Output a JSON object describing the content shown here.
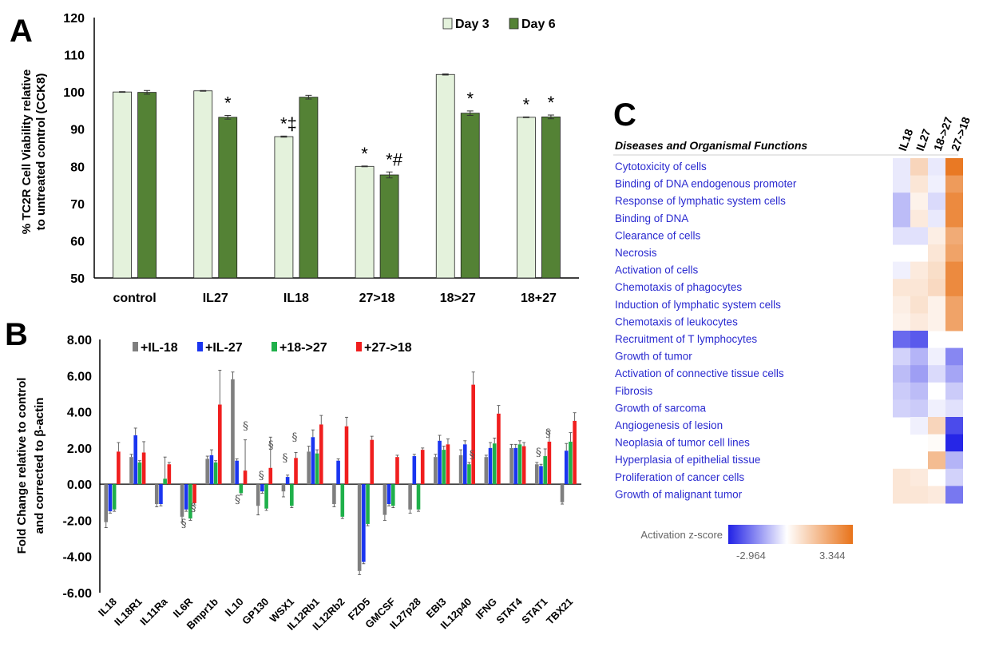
{
  "chart_data": [
    {
      "panel": "A",
      "type": "bar",
      "ylabel": "% TC2R Cell Viability relative to untreated control (CCK8)",
      "ylim": [
        50,
        120
      ],
      "yticks": [
        50,
        60,
        70,
        80,
        90,
        100,
        110,
        120
      ],
      "categories": [
        "control",
        "IL27",
        "IL18",
        "27>18",
        "18>27",
        "18+27"
      ],
      "series": [
        {
          "name": "Day 3",
          "color": "#e4f2dc",
          "values": [
            100.0,
            100.3,
            88.0,
            80.0,
            104.7,
            93.2
          ],
          "errors": [
            0.1,
            0.1,
            0.15,
            0.1,
            0.15,
            0.1
          ]
        },
        {
          "name": "Day 6",
          "color": "#548235",
          "values": [
            99.9,
            93.2,
            98.6,
            77.7,
            94.3,
            93.3
          ],
          "errors": [
            0.5,
            0.5,
            0.5,
            0.8,
            0.6,
            0.5
          ]
        }
      ],
      "annotations": [
        {
          "category": "IL27",
          "series": "Day 6",
          "text": "*"
        },
        {
          "category": "IL18",
          "series": "Day 3",
          "text": "*‡"
        },
        {
          "category": "27>18",
          "series": "Day 3",
          "text": "*"
        },
        {
          "category": "27>18",
          "series": "Day 6",
          "text": "*#"
        },
        {
          "category": "18>27",
          "series": "Day 6",
          "text": "*"
        },
        {
          "category": "18+27",
          "series": "Day 3",
          "text": "*"
        },
        {
          "category": "18+27",
          "series": "Day 6",
          "text": "*"
        }
      ],
      "legend": "top-right",
      "grid": false
    },
    {
      "panel": "B",
      "type": "bar",
      "ylabel_line1": "Fold Change relative to control",
      "ylabel_line2": "and corrected to β-actin",
      "ylim": [
        -6,
        8
      ],
      "yticks": [
        "8.00",
        "6.00",
        "4.00",
        "2.00",
        "0.00",
        "-2.00",
        "-4.00",
        "-6.00"
      ],
      "categories": [
        "IL18",
        "IL18R1",
        "IL11Ra",
        "IL6R",
        "Bmpr1b",
        "IL10",
        "GP130",
        "WSX1",
        "IL12Rb1",
        "IL12Rb2",
        "FZD5",
        "GMCSF",
        "IL27p28",
        "EBI3",
        "IL12p40",
        "IFNG",
        "STAT4",
        "STAT1",
        "TBX21"
      ],
      "series": [
        {
          "name": "+IL-18",
          "color": "#7f7f7f",
          "values": [
            -2.1,
            1.5,
            -1.1,
            -1.8,
            1.4,
            5.8,
            -1.2,
            -0.4,
            1.8,
            -1.1,
            -4.8,
            -1.7,
            -1.4,
            1.5,
            1.6,
            1.5,
            2.0,
            1.1,
            -1.0
          ],
          "errors": [
            0.3,
            0.15,
            0.15,
            0.3,
            0.15,
            0.4,
            0.5,
            0.3,
            0.3,
            0.15,
            0.2,
            0.3,
            0.2,
            0.15,
            0.3,
            0.1,
            0.2,
            0.1,
            0.1
          ]
        },
        {
          "name": "+IL-27",
          "color": "#1a35f0",
          "values": [
            -1.5,
            2.7,
            -1.1,
            -1.4,
            1.6,
            1.3,
            -0.4,
            0.4,
            2.6,
            1.3,
            -4.3,
            -1.1,
            1.55,
            2.4,
            2.2,
            2.0,
            2.0,
            1.0,
            1.85
          ],
          "errors": [
            0.1,
            0.4,
            0.1,
            0.1,
            0.3,
            0.1,
            0.1,
            0.1,
            0.4,
            0.1,
            0.1,
            0.1,
            0.1,
            0.3,
            0.2,
            0.3,
            0.2,
            0.1,
            0.4
          ]
        },
        {
          "name": "+18->27",
          "color": "#1fb04a",
          "values": [
            -1.4,
            1.2,
            0.3,
            -1.9,
            1.2,
            -0.5,
            -1.35,
            -1.2,
            1.7,
            -1.8,
            -2.2,
            -1.2,
            -1.4,
            1.9,
            1.1,
            2.25,
            2.2,
            1.55,
            2.35
          ],
          "errors": [
            0.1,
            0.1,
            1.2,
            0.1,
            0.1,
            0.1,
            0.1,
            0.1,
            0.2,
            0.1,
            0.1,
            0.1,
            0.1,
            0.2,
            0.1,
            0.3,
            0.2,
            0.4,
            0.5
          ]
        },
        {
          "name": "+27->18",
          "color": "#f01e1e",
          "values": [
            1.8,
            1.75,
            1.1,
            -1.05,
            4.4,
            0.75,
            0.9,
            1.45,
            3.3,
            3.2,
            2.45,
            1.5,
            1.9,
            2.2,
            5.5,
            3.9,
            2.1,
            2.35,
            3.5
          ],
          "errors": [
            0.5,
            0.6,
            0.1,
            0.1,
            1.9,
            1.7,
            1.7,
            0.3,
            0.5,
            0.5,
            0.2,
            0.1,
            0.1,
            0.3,
            0.7,
            0.45,
            0.2,
            0.6,
            0.45
          ]
        }
      ],
      "annotations": [
        {
          "category": "IL6R",
          "text": "§"
        },
        {
          "category": "IL6R",
          "text": "§"
        },
        {
          "category": "IL10",
          "text": "§"
        },
        {
          "category": "IL10",
          "text": "§"
        },
        {
          "category": "GP130",
          "text": "§"
        },
        {
          "category": "GP130",
          "text": "§"
        },
        {
          "category": "WSX1",
          "text": "§"
        },
        {
          "category": "WSX1",
          "text": "§"
        },
        {
          "category": "IL12p40",
          "text": "§"
        },
        {
          "category": "STAT1",
          "text": "§"
        },
        {
          "category": "STAT1",
          "text": "§"
        }
      ],
      "legend": "top-left",
      "grid": false
    },
    {
      "panel": "C",
      "type": "heatmap",
      "title": "Diseases and Organismal Functions",
      "columns": [
        "IL18",
        "IL27",
        "18->27",
        "27->18"
      ],
      "rows": [
        "Cytotoxicity of cells",
        "Binding of DNA endogenous promoter",
        "Response of lymphatic system cells",
        "Binding of DNA",
        "Clearance of cells",
        "Necrosis",
        "Activation of cells",
        "Chemotaxis of phagocytes",
        "Induction of lymphatic system cells",
        "Chemotaxis of leukocytes",
        "Recruitment of T lymphocytes",
        "Growth of tumor",
        "Activation of connective tissue cells",
        "Fibrosis",
        "Growth of sarcoma",
        "Angiogenesis of lesion",
        "Neoplasia of tumor cell lines",
        "Hyperplasia of epithelial tissue",
        "Proliferation of cancer cells",
        "Growth of malignant tumor"
      ],
      "values": [
        [
          -0.3,
          1.0,
          -0.3,
          3.2
        ],
        [
          -0.3,
          0.6,
          -0.2,
          2.4
        ],
        [
          -0.9,
          0.3,
          -0.5,
          2.8
        ],
        [
          -0.9,
          0.5,
          -0.3,
          2.8
        ],
        [
          -0.4,
          -0.4,
          0.4,
          2.0
        ],
        [
          null,
          null,
          0.6,
          2.2
        ],
        [
          -0.2,
          0.5,
          0.8,
          2.8
        ],
        [
          0.6,
          0.6,
          0.9,
          2.8
        ],
        [
          0.4,
          0.7,
          0.3,
          2.2
        ],
        [
          0.3,
          0.5,
          0.3,
          2.2
        ],
        [
          -2.0,
          -2.2,
          null,
          null
        ],
        [
          -0.6,
          -1.0,
          -0.2,
          -1.6
        ],
        [
          -0.9,
          -1.3,
          -0.5,
          -1.2
        ],
        [
          -0.7,
          -0.9,
          0.0,
          -0.7
        ],
        [
          -0.6,
          -0.7,
          -0.2,
          -0.4
        ],
        [
          null,
          -0.2,
          1.0,
          -2.4
        ],
        [
          null,
          null,
          0.1,
          -2.9
        ],
        [
          null,
          null,
          1.6,
          -1.0
        ],
        [
          0.6,
          0.5,
          null,
          -0.6
        ],
        [
          0.6,
          0.6,
          0.5,
          -1.8
        ]
      ],
      "colorbar": {
        "label": "Activation z-score",
        "min": -2.964,
        "max": 3.344,
        "min_label": "-2.964",
        "max_label": "3.344",
        "low_color": "#2121e6",
        "mid_color": "#ffffff",
        "high_color": "#e8731a"
      }
    }
  ],
  "labels": {
    "panel_a": "A",
    "panel_b": "B",
    "panel_c": "C",
    "a_ylabel_line1": "% TC2R Cell Viability relative",
    "a_ylabel_line2": "to untreated control (CCK8)"
  }
}
